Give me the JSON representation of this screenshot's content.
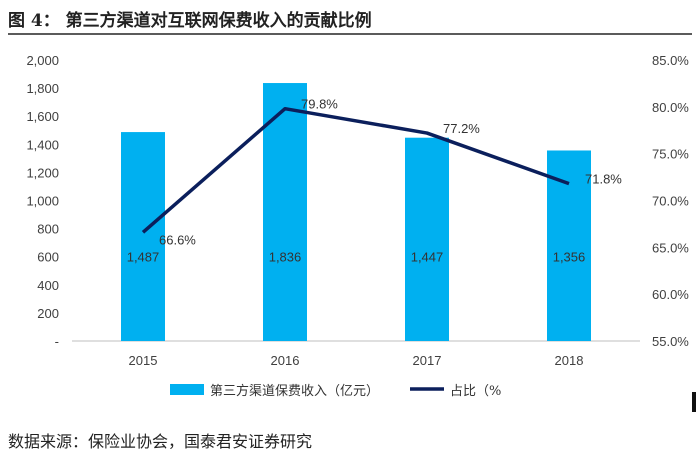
{
  "figure": {
    "title": "图 4： 第三方渠道对互联网保费收入的贡献比例",
    "source": "数据来源：保险业协会，国泰君安证券研究"
  },
  "colors": {
    "bar": "#00b0f0",
    "line": "#0b1f5c",
    "axis": "#bfbfbf",
    "text": "#404040"
  },
  "chart_data": {
    "type": "bar+line",
    "title": "第三方渠道对互联网保费收入的贡献比例",
    "categories": [
      "2015",
      "2016",
      "2017",
      "2018"
    ],
    "series": [
      {
        "name": "第三方渠道保费收入（亿元）",
        "type": "bar",
        "axis": "left",
        "values": [
          1487,
          1836,
          1447,
          1356
        ],
        "labels": [
          "1,487",
          "1,836",
          "1,447",
          "1,356"
        ]
      },
      {
        "name": "占比（%",
        "type": "line",
        "axis": "right",
        "values": [
          66.6,
          79.8,
          77.2,
          71.8
        ],
        "labels": [
          "66.6%",
          "79.8%",
          "77.2%",
          "71.8%"
        ]
      }
    ],
    "y_left": {
      "min": 0,
      "max": 2000,
      "ticks": [
        0,
        200,
        400,
        600,
        800,
        1000,
        1200,
        1400,
        1600,
        1800,
        2000
      ],
      "tick_labels": [
        "-",
        "200",
        "400",
        "600",
        "800",
        "1,000",
        "1,200",
        "1,400",
        "1,600",
        "1,800",
        "2,000"
      ]
    },
    "y_right": {
      "min": 55,
      "max": 85,
      "ticks": [
        55,
        60,
        65,
        70,
        75,
        80,
        85
      ],
      "tick_labels": [
        "55.0%",
        "60.0%",
        "65.0%",
        "70.0%",
        "75.0%",
        "80.0%",
        "85.0%"
      ]
    },
    "legend_position": "bottom"
  }
}
